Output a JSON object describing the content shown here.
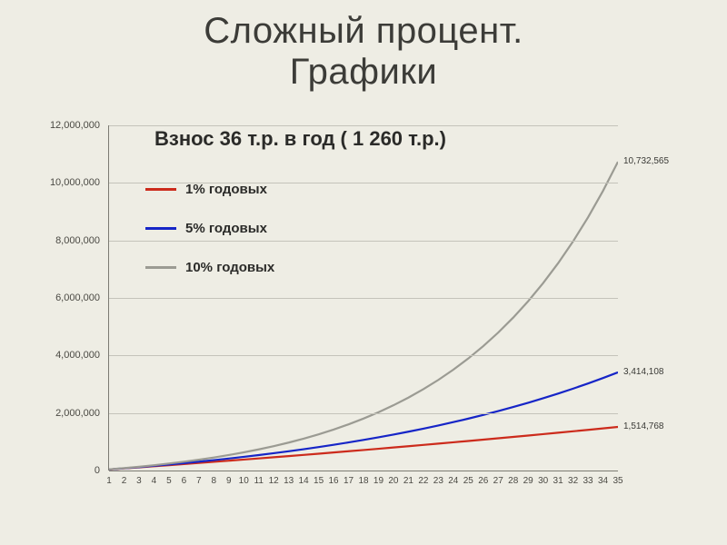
{
  "title_line1": "Сложный процент.",
  "title_line2": "Графики",
  "chart": {
    "type": "line",
    "subtitle": "Взнос 36 т.р. в год ( 1 260 т.р.)",
    "background_color": "#eeede4",
    "grid_color": "#c4c3ba",
    "axis_color": "#7c7b73",
    "text_color": "#4a4943",
    "subtitle_color": "#2b2b29",
    "subtitle_fontsize": 22,
    "label_fontsize": 11,
    "xtick_fontsize": 10,
    "endlabel_fontsize": 10,
    "line_width": 2.2,
    "ymin": 0,
    "ymax": 12000000,
    "ytick_step": 2000000,
    "yticks": [
      "0",
      "2,000,000",
      "4,000,000",
      "6,000,000",
      "8,000,000",
      "10,000,000",
      "12,000,000"
    ],
    "xmin": 1,
    "xmax": 35,
    "xticks": [
      "1",
      "2",
      "3",
      "4",
      "5",
      "6",
      "7",
      "8",
      "9",
      "10",
      "11",
      "12",
      "13",
      "14",
      "15",
      "16",
      "17",
      "18",
      "19",
      "20",
      "21",
      "22",
      "23",
      "24",
      "25",
      "26",
      "27",
      "28",
      "29",
      "30",
      "31",
      "32",
      "33",
      "34",
      "35"
    ],
    "legend_position": "upper-left-inside",
    "series": [
      {
        "name": "1% годовых",
        "color": "#cc2b1c",
        "end_label": "1,514,768",
        "end_value": 1514768,
        "rate": 0.01,
        "annual": 36000
      },
      {
        "name": "5% годовых",
        "color": "#1625c7",
        "end_label": "3,414,108",
        "end_value": 3414108,
        "rate": 0.05,
        "annual": 36000
      },
      {
        "name": "10% годовых",
        "color": "#9b9b93",
        "end_label": "10,732,565",
        "end_value": 10732565,
        "rate": 0.1,
        "annual": 36000
      }
    ]
  }
}
